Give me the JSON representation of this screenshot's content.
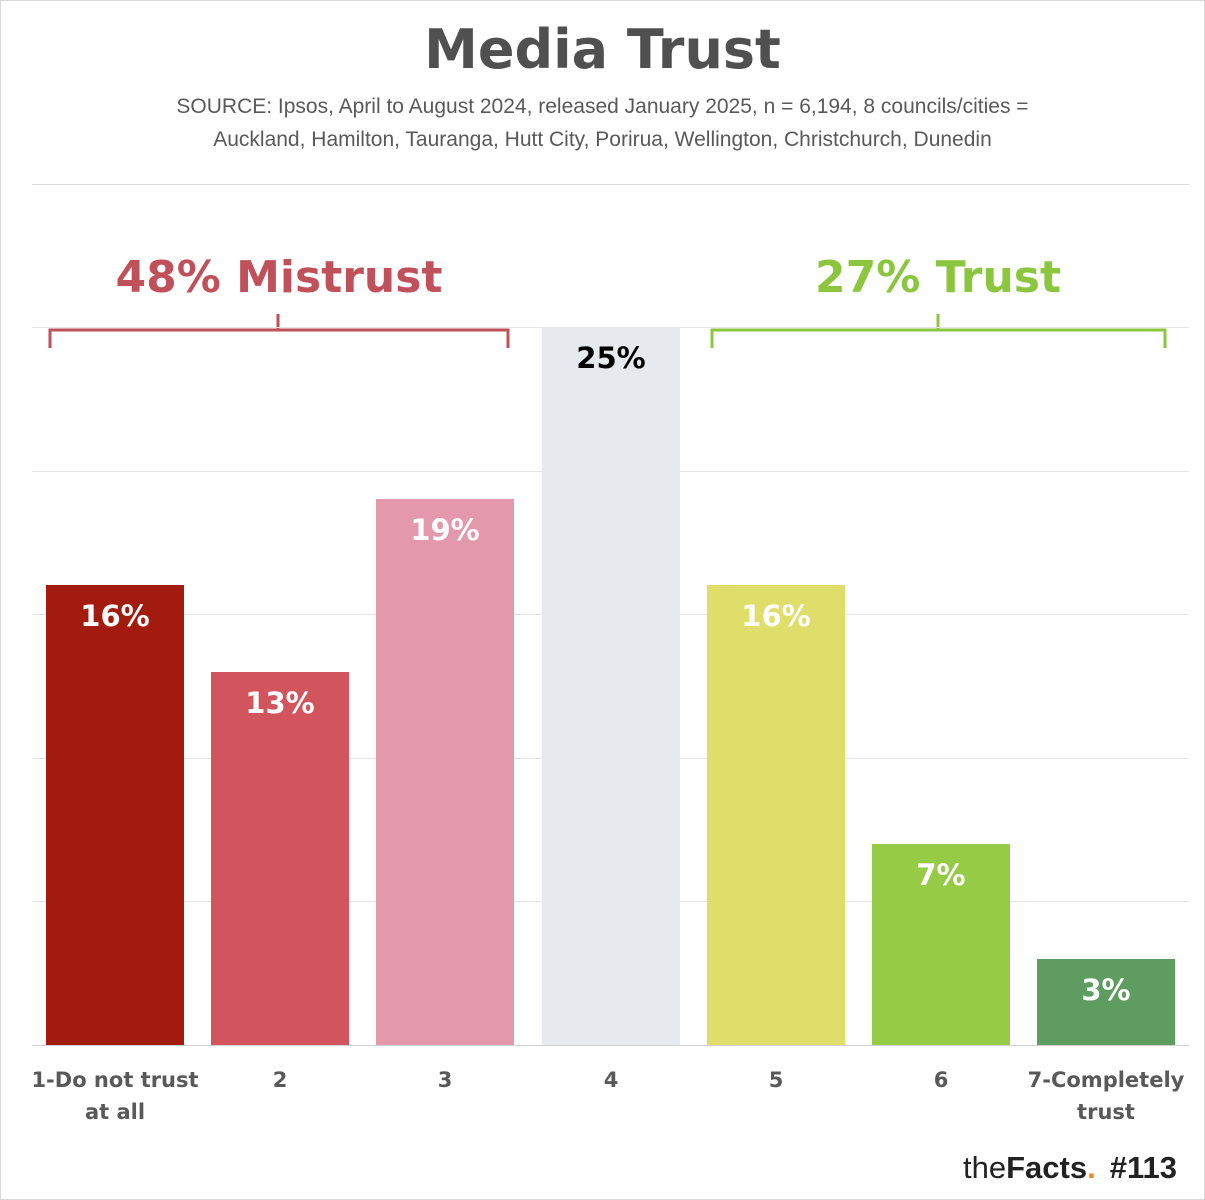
{
  "header": {
    "title": "Media Trust",
    "subtitle_line1": "SOURCE: Ipsos, April to August 2024, released January 2025, n = 6,194, 8 councils/cities =",
    "subtitle_line2": "Auckland, Hamilton, Tauranga, Hutt City, Porirua, Wellington, Christchurch, Dunedin"
  },
  "groups": {
    "mistrust": {
      "label": "48% Mistrust",
      "color": "#c0505a"
    },
    "trust": {
      "label": "27% Trust",
      "color": "#8cc63f"
    }
  },
  "bars": [
    {
      "category": "1-Do not trust at all",
      "cat_line1": "1-Do not trust",
      "cat_line2": "at all",
      "value": 16,
      "label": "16%",
      "color": "#a31b0e",
      "label_color": "#ffffff"
    },
    {
      "category": "2",
      "cat_line1": "2",
      "cat_line2": "",
      "value": 13,
      "label": "13%",
      "color": "#d2555e",
      "label_color": "#ffffff"
    },
    {
      "category": "3",
      "cat_line1": "3",
      "cat_line2": "",
      "value": 19,
      "label": "19%",
      "color": "#e498ab",
      "label_color": "#ffffff"
    },
    {
      "category": "4",
      "cat_line1": "4",
      "cat_line2": "",
      "value": 25,
      "label": "25%",
      "color": "#e6e9ee",
      "label_color": "#000000"
    },
    {
      "category": "5",
      "cat_line1": "5",
      "cat_line2": "",
      "value": 16,
      "label": "16%",
      "color": "#e0de6a",
      "label_color": "#ffffff"
    },
    {
      "category": "6",
      "cat_line1": "6",
      "cat_line2": "",
      "value": 7,
      "label": "7%",
      "color": "#96cb45",
      "label_color": "#ffffff"
    },
    {
      "category": "7-Completely trust",
      "cat_line1": "7-Completely",
      "cat_line2": "trust",
      "value": 3,
      "label": "3%",
      "color": "#5e9c60",
      "label_color": "#ffffff"
    }
  ],
  "footer": {
    "brand_the": "the",
    "brand_facts": "Facts",
    "brand_dot": ".",
    "issue": "#113"
  },
  "chart_data": {
    "type": "bar",
    "title": "Media Trust",
    "subtitle": "SOURCE: Ipsos, April to August 2024, released January 2025, n = 6,194, 8 councils/cities = Auckland, Hamilton, Tauranga, Hutt City, Porirua, Wellington, Christchurch, Dunedin",
    "categories": [
      "1-Do not trust at all",
      "2",
      "3",
      "4",
      "5",
      "6",
      "7-Completely trust"
    ],
    "values": [
      16,
      13,
      19,
      25,
      16,
      7,
      3
    ],
    "data_labels": [
      "16%",
      "13%",
      "19%",
      "25%",
      "16%",
      "7%",
      "3%"
    ],
    "xlabel": "",
    "ylabel": "",
    "ylim": [
      0,
      25
    ],
    "grid": true,
    "annotations": [
      {
        "text": "48% Mistrust",
        "spans": [
          "1-Do not trust at all",
          "2",
          "3"
        ]
      },
      {
        "text": "27% Trust",
        "spans": [
          "5",
          "6",
          "7-Completely trust"
        ]
      }
    ],
    "legend": null
  }
}
